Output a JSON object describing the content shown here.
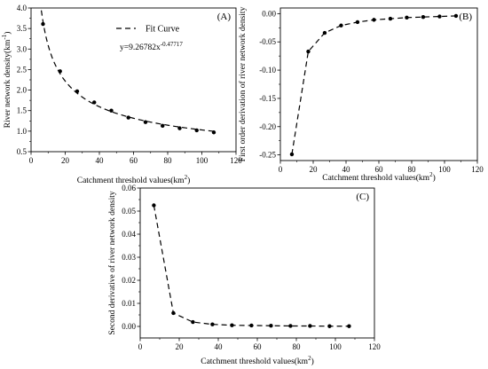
{
  "chart_data": [
    {
      "id": "A",
      "type": "scatter",
      "panel_label": "(A)",
      "xlabel": "Catchment threshold values(km",
      "xlabel_sup": "2",
      "xlabel_end": ")",
      "ylabel": "River network density(km",
      "ylabel_sup": "-1",
      "ylabel_end": ")",
      "xlim": [
        0,
        120
      ],
      "ylim": [
        0.5,
        4.0
      ],
      "xticks": [
        "0",
        "20",
        "40",
        "60",
        "80",
        "100",
        "120"
      ],
      "yticks": [
        "0.5",
        "1.0",
        "1.5",
        "2.0",
        "2.5",
        "3.0",
        "3.5",
        "4.0"
      ],
      "legend": {
        "label": "Fit Curve",
        "placement": "top-center"
      },
      "equation": {
        "base": "y=9.26782x",
        "exponent": "-0.47717"
      },
      "fit": {
        "a": 9.26782,
        "b": -0.47717
      },
      "series": [
        {
          "x": [
            7,
            17,
            27,
            37,
            47,
            57,
            67,
            77,
            87,
            97,
            107
          ],
          "y": [
            3.61,
            2.46,
            1.97,
            1.7,
            1.5,
            1.33,
            1.22,
            1.13,
            1.07,
            1.02,
            0.97
          ]
        }
      ]
    },
    {
      "id": "B",
      "type": "line",
      "panel_label": "(B)",
      "xlabel": "Catchment threshold values(km",
      "xlabel_sup": "2",
      "xlabel_end": ")",
      "ylabel": "First order derivation of river network density",
      "xlim": [
        0,
        120
      ],
      "ylim": [
        -0.26,
        0.01
      ],
      "xticks": [
        "0",
        "20",
        "40",
        "60",
        "80",
        "100",
        "120"
      ],
      "yticks": [
        "-0.25",
        "-0.20",
        "-0.15",
        "-0.10",
        "-0.05",
        "0.00"
      ],
      "series": [
        {
          "x": [
            7,
            17,
            27,
            37,
            47,
            57,
            67,
            77,
            87,
            97,
            107
          ],
          "y": [
            -0.249,
            -0.067,
            -0.034,
            -0.021,
            -0.015,
            -0.011,
            -0.009,
            -0.007,
            -0.006,
            -0.005,
            -0.004
          ]
        }
      ]
    },
    {
      "id": "C",
      "type": "line",
      "panel_label": "(C)",
      "xlabel": "Catchment threshold values(km",
      "xlabel_sup": "2",
      "xlabel_end": ")",
      "ylabel": "Second derivative of river network density",
      "xlim": [
        0,
        120
      ],
      "ylim": [
        -0.005,
        0.06
      ],
      "xticks": [
        "0",
        "20",
        "40",
        "60",
        "80",
        "100",
        "120"
      ],
      "yticks": [
        "0.00",
        "0.01",
        "0.02",
        "0.03",
        "0.04",
        "0.05",
        "0.06"
      ],
      "series": [
        {
          "x": [
            7,
            17,
            27,
            37,
            47,
            57,
            67,
            77,
            87,
            97,
            107
          ],
          "y": [
            0.0525,
            0.0058,
            0.0019,
            0.0009,
            0.0005,
            0.0004,
            0.0003,
            0.0002,
            0.0002,
            0.0001,
            0.0001
          ]
        }
      ]
    }
  ]
}
